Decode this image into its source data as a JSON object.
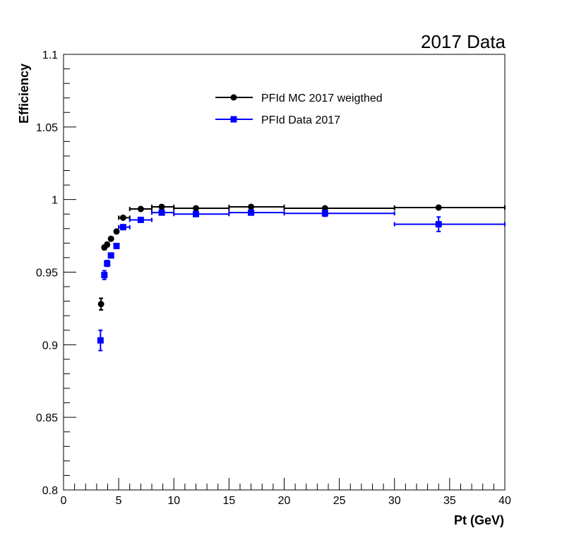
{
  "chart_data": {
    "type": "scatter",
    "title": "2017 Data",
    "xlabel": "Pt (GeV)",
    "ylabel": "Efficiency",
    "xlim": [
      0,
      40
    ],
    "ylim": [
      0.8,
      1.1
    ],
    "xticks": [
      "0",
      "5",
      "10",
      "15",
      "20",
      "25",
      "30",
      "35",
      "40"
    ],
    "yticks": [
      "0.8",
      "0.85",
      "0.9",
      "0.95",
      "1",
      "1.05",
      "1.1"
    ],
    "legend_position": "top-center",
    "grid": false,
    "series": [
      {
        "name": "PFId MC 2017 weigthed",
        "color": "#000000",
        "marker": "circle",
        "points": [
          {
            "x": 3.4,
            "xerr": [
              0.05,
              0.05
            ],
            "y": 0.928,
            "yerr": 0.004
          },
          {
            "x": 3.7,
            "xerr": [
              0.05,
              0.05
            ],
            "y": 0.967,
            "yerr": 0.0015
          },
          {
            "x": 3.95,
            "xerr": [
              0.05,
              0.05
            ],
            "y": 0.969,
            "yerr": 0.0015
          },
          {
            "x": 4.3,
            "xerr": [
              0.05,
              0.05
            ],
            "y": 0.973,
            "yerr": 0.0012
          },
          {
            "x": 4.8,
            "xerr": [
              0.05,
              0.05
            ],
            "y": 0.978,
            "yerr": 0.001
          },
          {
            "x": 5.4,
            "xerr": [
              0.4,
              0.6
            ],
            "y": 0.9875,
            "yerr": 0.0008
          },
          {
            "x": 7.0,
            "xerr": [
              1.0,
              1.0
            ],
            "y": 0.9935,
            "yerr": 0.0006
          },
          {
            "x": 8.9,
            "xerr": [
              0.9,
              1.1
            ],
            "y": 0.995,
            "yerr": 0.0005
          },
          {
            "x": 12.0,
            "xerr": [
              2.0,
              3.0
            ],
            "y": 0.994,
            "yerr": 0.0005
          },
          {
            "x": 17.0,
            "xerr": [
              2.0,
              3.0
            ],
            "y": 0.995,
            "yerr": 0.0005
          },
          {
            "x": 23.7,
            "xerr": [
              3.7,
              6.3
            ],
            "y": 0.994,
            "yerr": 0.0006
          },
          {
            "x": 34.0,
            "xerr": [
              4.0,
              6.0
            ],
            "y": 0.9945,
            "yerr": 0.0008
          }
        ]
      },
      {
        "name": "PFId Data 2017",
        "color": "#0000ff",
        "marker": "square",
        "points": [
          {
            "x": 3.35,
            "xerr": [
              0.05,
              0.05
            ],
            "y": 0.903,
            "yerr": 0.007
          },
          {
            "x": 3.7,
            "xerr": [
              0.05,
              0.05
            ],
            "y": 0.948,
            "yerr": 0.003
          },
          {
            "x": 3.95,
            "xerr": [
              0.05,
              0.05
            ],
            "y": 0.956,
            "yerr": 0.002
          },
          {
            "x": 4.3,
            "xerr": [
              0.05,
              0.05
            ],
            "y": 0.9615,
            "yerr": 0.0015
          },
          {
            "x": 4.8,
            "xerr": [
              0.05,
              0.05
            ],
            "y": 0.968,
            "yerr": 0.0012
          },
          {
            "x": 5.4,
            "xerr": [
              0.4,
              0.6
            ],
            "y": 0.981,
            "yerr": 0.001
          },
          {
            "x": 7.0,
            "xerr": [
              1.0,
              1.0
            ],
            "y": 0.986,
            "yerr": 0.001
          },
          {
            "x": 8.9,
            "xerr": [
              0.9,
              1.1
            ],
            "y": 0.991,
            "yerr": 0.0008
          },
          {
            "x": 12.0,
            "xerr": [
              2.0,
              3.0
            ],
            "y": 0.99,
            "yerr": 0.0008
          },
          {
            "x": 17.0,
            "xerr": [
              2.0,
              3.0
            ],
            "y": 0.991,
            "yerr": 0.0008
          },
          {
            "x": 23.7,
            "xerr": [
              3.7,
              6.3
            ],
            "y": 0.9905,
            "yerr": 0.002
          },
          {
            "x": 34.0,
            "xerr": [
              4.0,
              6.0
            ],
            "y": 0.983,
            "yerr": 0.005
          }
        ]
      }
    ]
  }
}
